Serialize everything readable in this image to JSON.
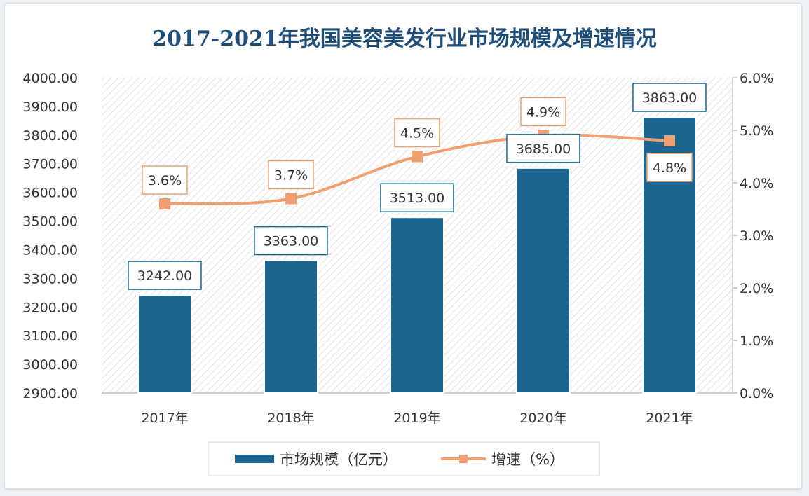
{
  "chart_data": {
    "type": "bar",
    "title": "2017-2021年我国美容美发行业市场规模及增速情况",
    "categories": [
      "2017年",
      "2018年",
      "2019年",
      "2020年",
      "2021年"
    ],
    "series": [
      {
        "name": "市场规模（亿元）",
        "type": "bar",
        "axis": "left",
        "color": "#1a6690",
        "values": [
          3242.0,
          3363.0,
          3513.0,
          3685.0,
          3863.0
        ],
        "labels": [
          "3242.00",
          "3363.00",
          "3513.00",
          "3685.00",
          "3863.00"
        ]
      },
      {
        "name": "增速（%）",
        "type": "line",
        "axis": "right",
        "color": "#f0a070",
        "values": [
          3.6,
          3.7,
          4.5,
          4.9,
          4.8
        ],
        "labels": [
          "3.6%",
          "3.7%",
          "4.5%",
          "4.9%",
          "4.8%"
        ]
      }
    ],
    "y_left": {
      "range": [
        2900,
        4000
      ],
      "ticks": [
        "2900.00",
        "3000.00",
        "3100.00",
        "3200.00",
        "3300.00",
        "3400.00",
        "3500.00",
        "3600.00",
        "3700.00",
        "3800.00",
        "3900.00",
        "4000.00"
      ]
    },
    "y_right": {
      "range": [
        0,
        6
      ],
      "ticks": [
        "0.0%",
        "1.0%",
        "2.0%",
        "3.0%",
        "4.0%",
        "5.0%",
        "6.0%"
      ]
    },
    "grid": false,
    "legend_position": "bottom",
    "legend": [
      "市场规模（亿元）",
      "增速（%）"
    ]
  }
}
